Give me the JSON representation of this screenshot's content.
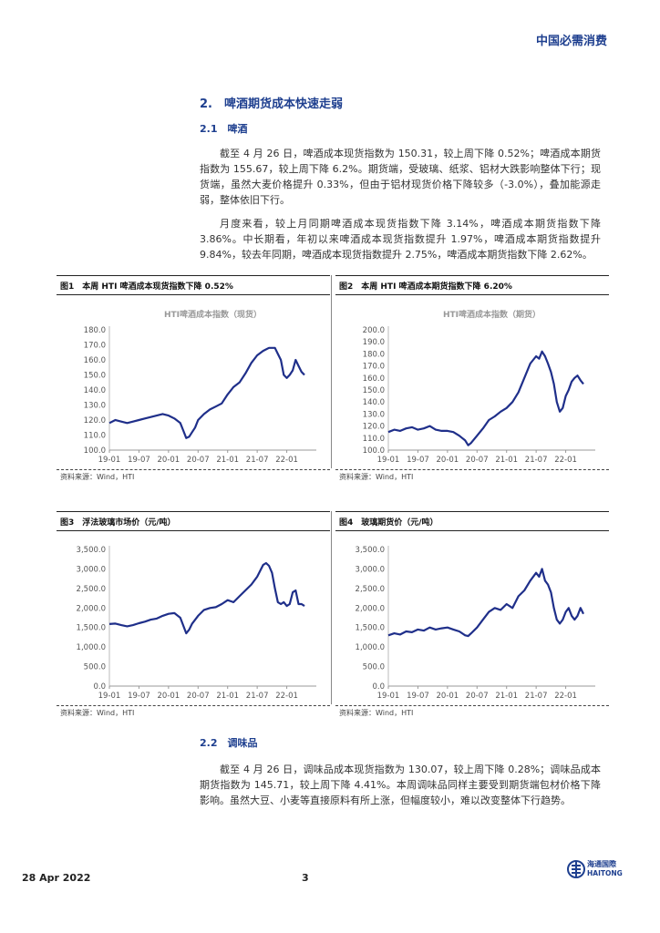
{
  "header": {
    "brand": "中国必需消费"
  },
  "section": {
    "title": "2.　啤酒期货成本快速走弱"
  },
  "sub1": {
    "title": "2.1　啤酒"
  },
  "para1": "截至 4 月 26 日，啤酒成本现货指数为 150.31，较上周下降 0.52%；啤酒成本期货指数为 155.67，较上周下降 6.2%。期货端，受玻璃、纸浆、铝材大跌影响整体下行；现货端，虽然大麦价格提升 0.33%，但由于铝材现货价格下降较多（-3.0%），叠加能源走弱，整体依旧下行。",
  "para2": "月度来看，较上月同期啤酒成本现货指数下降 3.14%，啤酒成本期货指数下降 3.86%。中长期看，年初以来啤酒成本现货指数提升 1.97%，啤酒成本期货指数提升 9.84%，较去年同期，啤酒成本现货指数提升 2.75%，啤酒成本期货指数下降 2.62%。",
  "figures": [
    {
      "label": "图1　本周 HTI 啤酒成本现货指数下降 0.52%",
      "source": "资料来源：Wind，HTI"
    },
    {
      "label": "图2　本周 HTI 啤酒成本期货指数下降 6.20%",
      "source": "资料来源：Wind，HTI"
    },
    {
      "label": "图3　浮法玻璃市场价（元/吨）",
      "source": "资料来源：Wind，HTI"
    },
    {
      "label": "图4　玻璃期货价（元/吨）",
      "source": "资料来源：Wind，HTI"
    }
  ],
  "sub2": {
    "title": "2.2　调味品"
  },
  "para3": "截至 4 月 26 日，调味品成本现货指数为 130.07，较上周下降 0.28%；调味品成本期货指数为 145.71，较上周下降 4.41%。本周调味品同样主要受到期货端包材价格下降影响。虽然大豆、小麦等直接原料有所上涨，但幅度较小，难以改变整体下行趋势。",
  "footer": {
    "date": "28 Apr 2022",
    "page": "3",
    "logo_cn": "海通国際",
    "logo_en": "HAITONG"
  },
  "chart_data": [
    {
      "type": "line",
      "title": "HTI啤酒成本指数（现货）",
      "categories": [
        "19-01",
        "19-07",
        "20-01",
        "20-07",
        "21-01",
        "21-07",
        "22-01"
      ],
      "yticks": [
        "100.0",
        "110.0",
        "120.0",
        "130.0",
        "140.0",
        "150.0",
        "160.0",
        "170.0",
        "180.0"
      ],
      "ylim": [
        100,
        180
      ],
      "x": [
        2019.0,
        2019.1,
        2019.2,
        2019.3,
        2019.4,
        2019.5,
        2019.6,
        2019.7,
        2019.8,
        2019.9,
        2020.0,
        2020.1,
        2020.2,
        2020.25,
        2020.3,
        2020.35,
        2020.4,
        2020.45,
        2020.5,
        2020.6,
        2020.7,
        2020.8,
        2020.9,
        2021.0,
        2021.1,
        2021.2,
        2021.3,
        2021.4,
        2021.5,
        2021.6,
        2021.7,
        2021.8,
        2021.85,
        2021.9,
        2021.95,
        2022.0,
        2022.05,
        2022.1,
        2022.15,
        2022.2,
        2022.25,
        2022.3
      ],
      "series": [
        {
          "values": [
            118,
            120,
            119,
            118,
            119,
            120,
            121,
            122,
            123,
            124,
            123,
            121,
            118,
            113,
            108,
            109,
            112,
            115,
            120,
            124,
            127,
            129,
            131,
            137,
            142,
            145,
            151,
            158,
            163,
            166,
            168,
            168,
            164,
            160,
            150,
            148,
            150,
            153,
            160,
            156,
            152,
            150
          ]
        }
      ],
      "grid": false
    },
    {
      "type": "line",
      "title": "HTI啤酒成本指数（期货）",
      "categories": [
        "19-01",
        "19-07",
        "20-01",
        "20-07",
        "21-01",
        "21-07",
        "22-01"
      ],
      "yticks": [
        "100.0",
        "110.0",
        "120.0",
        "130.0",
        "140.0",
        "150.0",
        "160.0",
        "170.0",
        "180.0",
        "190.0",
        "200.0"
      ],
      "ylim": [
        100,
        200
      ],
      "x": [
        2019.0,
        2019.1,
        2019.2,
        2019.3,
        2019.4,
        2019.5,
        2019.6,
        2019.7,
        2019.8,
        2019.9,
        2020.0,
        2020.1,
        2020.2,
        2020.3,
        2020.35,
        2020.4,
        2020.5,
        2020.6,
        2020.7,
        2020.8,
        2020.9,
        2021.0,
        2021.1,
        2021.2,
        2021.3,
        2021.4,
        2021.5,
        2021.55,
        2021.6,
        2021.65,
        2021.7,
        2021.75,
        2021.8,
        2021.85,
        2021.9,
        2021.95,
        2022.0,
        2022.05,
        2022.1,
        2022.15,
        2022.2,
        2022.25,
        2022.3
      ],
      "series": [
        {
          "values": [
            115,
            117,
            116,
            118,
            119,
            117,
            118,
            120,
            117,
            116,
            116,
            115,
            112,
            108,
            104,
            106,
            112,
            118,
            125,
            128,
            132,
            135,
            140,
            148,
            160,
            172,
            178,
            176,
            182,
            178,
            172,
            165,
            155,
            140,
            132,
            135,
            145,
            150,
            157,
            160,
            162,
            158,
            155
          ]
        }
      ],
      "grid": false
    },
    {
      "type": "line",
      "categories": [
        "19-01",
        "19-07",
        "20-01",
        "20-07",
        "21-01",
        "21-07",
        "22-01"
      ],
      "yticks": [
        "0.0",
        "500.0",
        "1,000.0",
        "1,500.0",
        "2,000.0",
        "2,500.0",
        "3,000.0",
        "3,500.0"
      ],
      "ylim": [
        0,
        3500
      ],
      "x": [
        2019.0,
        2019.1,
        2019.2,
        2019.3,
        2019.4,
        2019.5,
        2019.6,
        2019.7,
        2019.8,
        2019.9,
        2020.0,
        2020.1,
        2020.2,
        2020.3,
        2020.35,
        2020.4,
        2020.5,
        2020.6,
        2020.7,
        2020.8,
        2020.9,
        2021.0,
        2021.1,
        2021.2,
        2021.3,
        2021.4,
        2021.5,
        2021.6,
        2021.65,
        2021.7,
        2021.75,
        2021.8,
        2021.85,
        2021.9,
        2021.95,
        2022.0,
        2022.05,
        2022.1,
        2022.15,
        2022.2,
        2022.25,
        2022.3
      ],
      "series": [
        {
          "values": [
            1590,
            1600,
            1560,
            1530,
            1560,
            1610,
            1650,
            1700,
            1730,
            1800,
            1850,
            1870,
            1750,
            1350,
            1450,
            1600,
            1800,
            1950,
            2000,
            2020,
            2100,
            2200,
            2150,
            2300,
            2450,
            2600,
            2800,
            3100,
            3150,
            3080,
            2900,
            2500,
            2150,
            2100,
            2150,
            2050,
            2100,
            2400,
            2450,
            2100,
            2100,
            2050
          ]
        }
      ],
      "grid": false
    },
    {
      "type": "line",
      "categories": [
        "19-01",
        "19-07",
        "20-01",
        "20-07",
        "21-01",
        "21-07",
        "22-01"
      ],
      "yticks": [
        "0.0",
        "500.0",
        "1,000.0",
        "1,500.0",
        "2,000.0",
        "2,500.0",
        "3,000.0",
        "3,500.0"
      ],
      "ylim": [
        0,
        3500
      ],
      "x": [
        2019.0,
        2019.1,
        2019.2,
        2019.3,
        2019.4,
        2019.5,
        2019.6,
        2019.7,
        2019.8,
        2019.9,
        2020.0,
        2020.1,
        2020.2,
        2020.3,
        2020.35,
        2020.4,
        2020.5,
        2020.6,
        2020.7,
        2020.8,
        2020.9,
        2021.0,
        2021.1,
        2021.2,
        2021.3,
        2021.4,
        2021.5,
        2021.55,
        2021.6,
        2021.65,
        2021.7,
        2021.75,
        2021.8,
        2021.85,
        2021.9,
        2021.95,
        2022.0,
        2022.05,
        2022.1,
        2022.15,
        2022.2,
        2022.25,
        2022.3
      ],
      "series": [
        {
          "values": [
            1300,
            1350,
            1320,
            1400,
            1380,
            1450,
            1420,
            1500,
            1450,
            1480,
            1500,
            1450,
            1400,
            1300,
            1280,
            1350,
            1500,
            1700,
            1900,
            2000,
            1950,
            2100,
            2000,
            2300,
            2450,
            2700,
            2900,
            2800,
            3000,
            2700,
            2600,
            2400,
            2000,
            1700,
            1600,
            1700,
            1900,
            2000,
            1800,
            1700,
            1800,
            2000,
            1850
          ]
        }
      ],
      "grid": false
    }
  ]
}
